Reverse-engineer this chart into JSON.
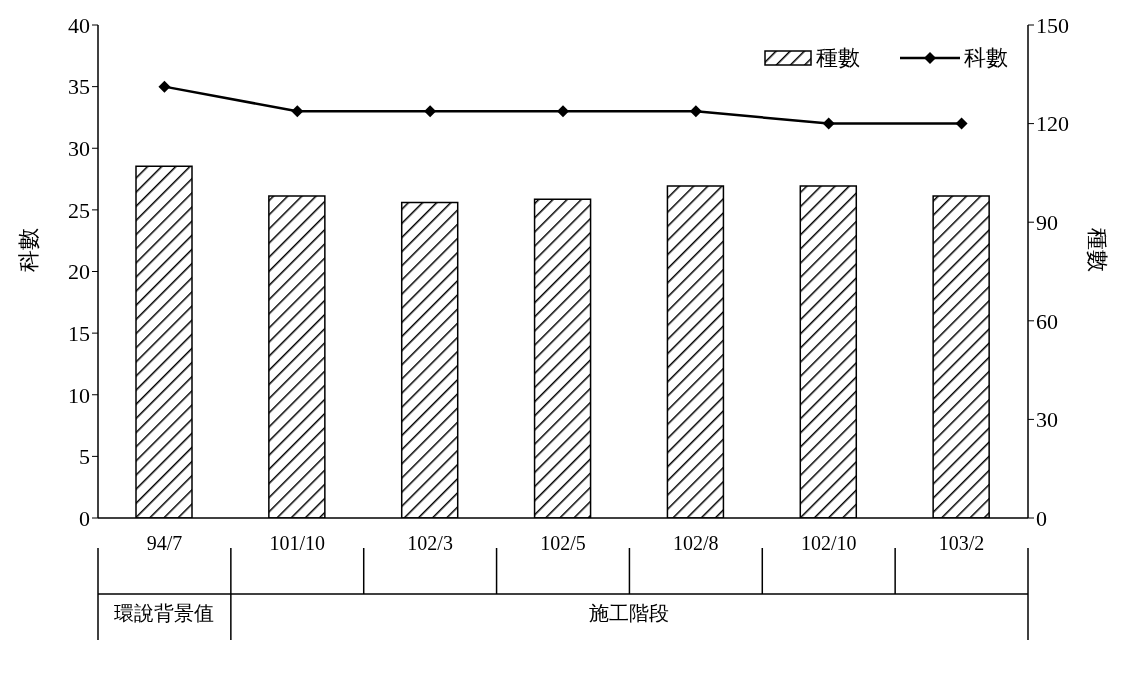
{
  "chart_data": {
    "type": "bar",
    "categories": [
      "94/7",
      "101/10",
      "102/3",
      "102/5",
      "102/8",
      "102/10",
      "103/2"
    ],
    "series": [
      {
        "name": "種數",
        "axis": "y2",
        "color": "#000000",
        "values": [
          107,
          98,
          96,
          97,
          101,
          101,
          98
        ]
      },
      {
        "name": "科數",
        "type": "line",
        "axis": "y",
        "color": "#000000",
        "values": [
          35,
          33,
          33,
          33,
          33,
          32,
          32
        ]
      }
    ],
    "ylabel": "科數",
    "y2label": "種數",
    "ylim": [
      0,
      40
    ],
    "yticks": [
      0,
      5,
      10,
      15,
      20,
      25,
      30,
      35,
      40
    ],
    "y2lim": [
      0,
      150
    ],
    "y2ticks": [
      0,
      30,
      60,
      90,
      120,
      150
    ],
    "annotations": [
      "環說背景值",
      "施工階段"
    ],
    "legend": "top right",
    "marker": "diamond"
  }
}
